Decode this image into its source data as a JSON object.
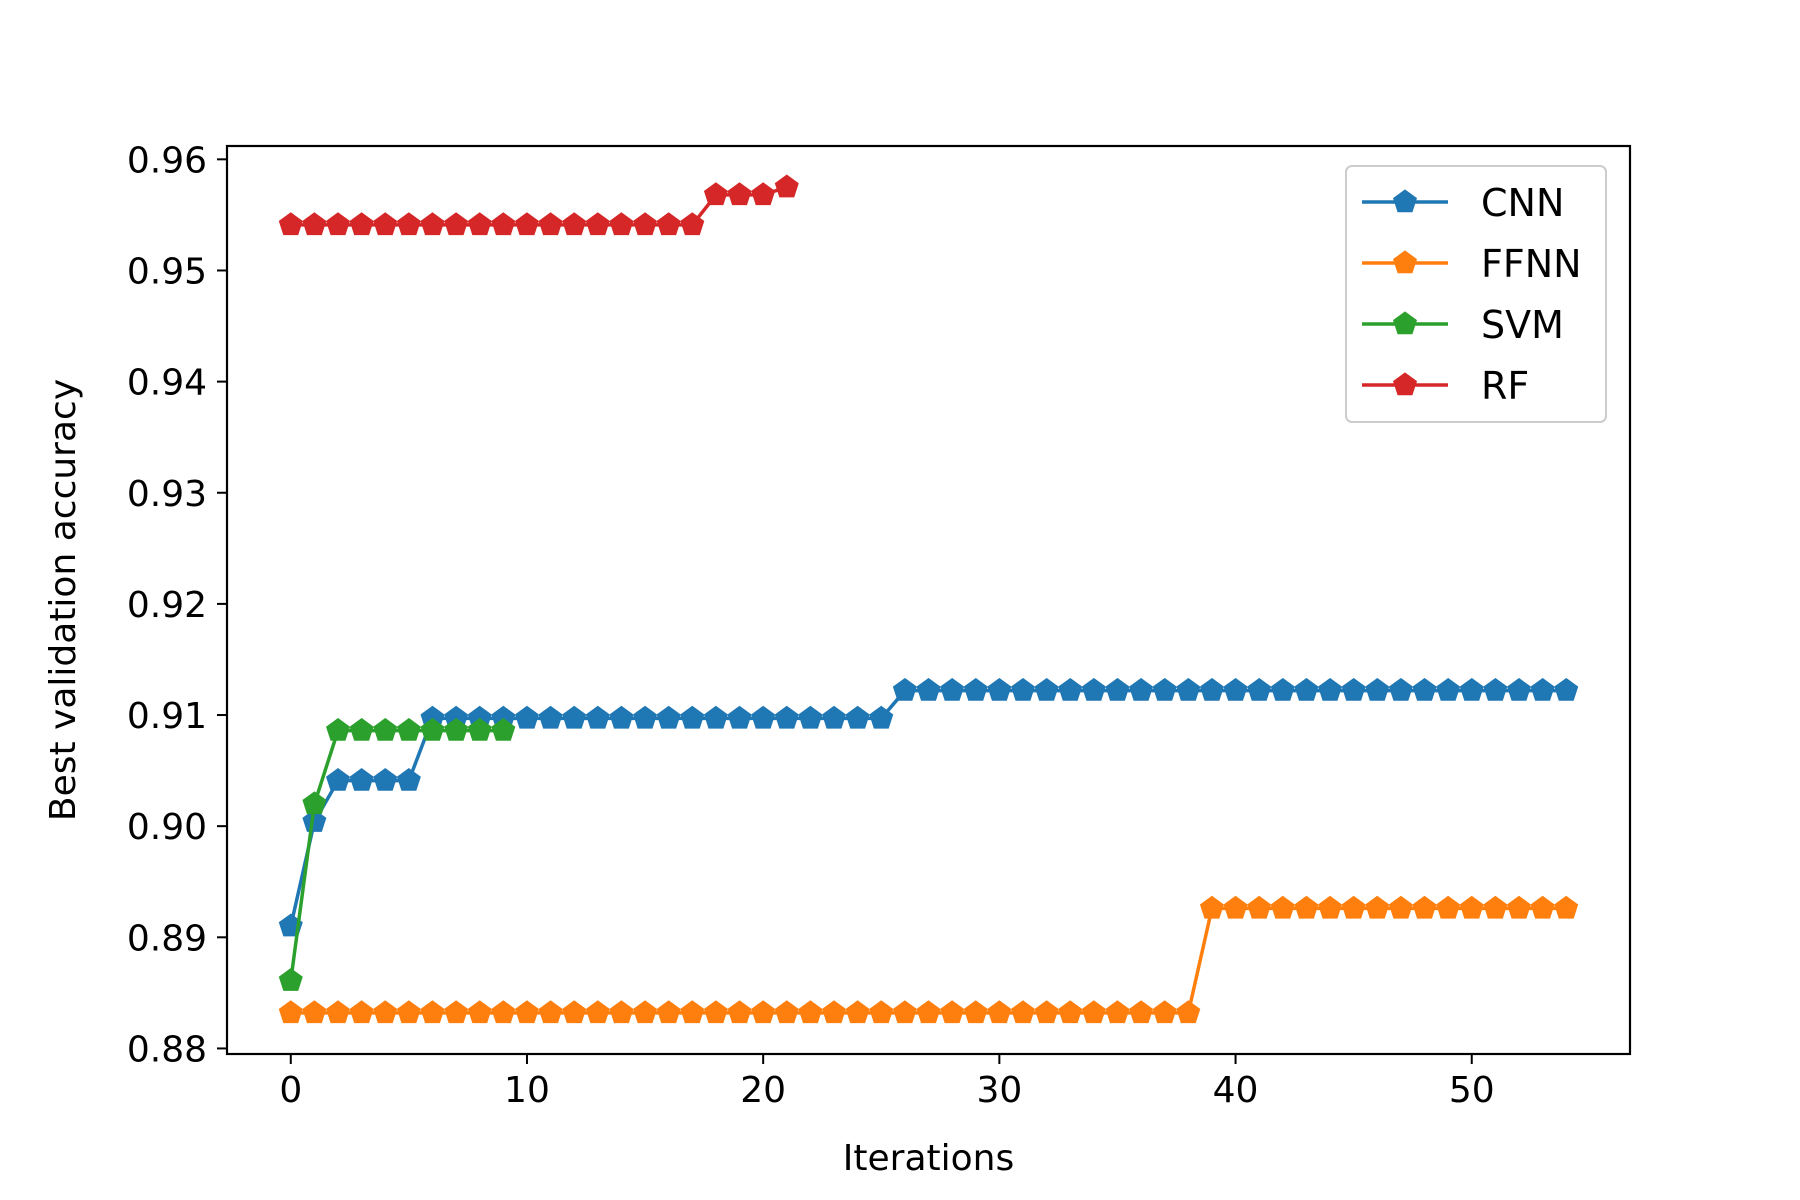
{
  "chart_data": {
    "type": "line",
    "title": "",
    "xlabel": "Iterations",
    "ylabel": "Best validation accuracy",
    "xlim": [
      -2.7,
      56.7
    ],
    "ylim": [
      0.8795,
      0.9612
    ],
    "xticks": [
      0,
      10,
      20,
      30,
      40,
      50
    ],
    "xtick_labels": [
      "0",
      "10",
      "20",
      "30",
      "40",
      "50"
    ],
    "yticks": [
      0.88,
      0.89,
      0.9,
      0.91,
      0.92,
      0.93,
      0.94,
      0.95,
      0.96
    ],
    "ytick_labels": [
      "0.88",
      "0.89",
      "0.90",
      "0.91",
      "0.92",
      "0.93",
      "0.94",
      "0.95",
      "0.96"
    ],
    "grid": false,
    "legend_position": "top-right",
    "marker": "pentagon",
    "series": [
      {
        "name": "CNN",
        "color": "#1f77b4",
        "x": [
          0,
          1,
          2,
          3,
          4,
          5,
          6,
          7,
          8,
          9,
          10,
          11,
          12,
          13,
          14,
          15,
          16,
          17,
          18,
          19,
          20,
          21,
          22,
          23,
          24,
          25,
          26,
          27,
          28,
          29,
          30,
          31,
          32,
          33,
          34,
          35,
          36,
          37,
          38,
          39,
          40,
          41,
          42,
          43,
          44,
          45,
          46,
          47,
          48,
          49,
          50,
          51,
          52,
          53,
          54
        ],
        "y": [
          0.891,
          0.9004,
          0.9041,
          0.9041,
          0.9041,
          0.9041,
          0.9097,
          0.9097,
          0.9097,
          0.9097,
          0.9097,
          0.9097,
          0.9097,
          0.9097,
          0.9097,
          0.9097,
          0.9097,
          0.9097,
          0.9097,
          0.9097,
          0.9097,
          0.9097,
          0.9097,
          0.9097,
          0.9097,
          0.9097,
          0.9122,
          0.9122,
          0.9122,
          0.9122,
          0.9122,
          0.9122,
          0.9122,
          0.9122,
          0.9122,
          0.9122,
          0.9122,
          0.9122,
          0.9122,
          0.9122,
          0.9122,
          0.9122,
          0.9122,
          0.9122,
          0.9122,
          0.9122,
          0.9122,
          0.9122,
          0.9122,
          0.9122,
          0.9122,
          0.9122,
          0.9122,
          0.9122,
          0.9122
        ]
      },
      {
        "name": "FFNN",
        "color": "#ff7f0e",
        "x": [
          0,
          1,
          2,
          3,
          4,
          5,
          6,
          7,
          8,
          9,
          10,
          11,
          12,
          13,
          14,
          15,
          16,
          17,
          18,
          19,
          20,
          21,
          22,
          23,
          24,
          25,
          26,
          27,
          28,
          29,
          30,
          31,
          32,
          33,
          34,
          35,
          36,
          37,
          38,
          39,
          40,
          41,
          42,
          43,
          44,
          45,
          46,
          47,
          48,
          49,
          50,
          51,
          52,
          53,
          54
        ],
        "y": [
          0.8832,
          0.8832,
          0.8832,
          0.8832,
          0.8832,
          0.8832,
          0.8832,
          0.8832,
          0.8832,
          0.8832,
          0.8832,
          0.8832,
          0.8832,
          0.8832,
          0.8832,
          0.8832,
          0.8832,
          0.8832,
          0.8832,
          0.8832,
          0.8832,
          0.8832,
          0.8832,
          0.8832,
          0.8832,
          0.8832,
          0.8832,
          0.8832,
          0.8832,
          0.8832,
          0.8832,
          0.8832,
          0.8832,
          0.8832,
          0.8832,
          0.8832,
          0.8832,
          0.8832,
          0.8832,
          0.8926,
          0.8926,
          0.8926,
          0.8926,
          0.8926,
          0.8926,
          0.8926,
          0.8926,
          0.8926,
          0.8926,
          0.8926,
          0.8926,
          0.8926,
          0.8926,
          0.8926,
          0.8926
        ]
      },
      {
        "name": "SVM",
        "color": "#2ca02c",
        "x": [
          0,
          1,
          2,
          3,
          4,
          5,
          6,
          7,
          8,
          9
        ],
        "y": [
          0.8861,
          0.902,
          0.9086,
          0.9086,
          0.9086,
          0.9086,
          0.9086,
          0.9086,
          0.9086,
          0.9086
        ]
      },
      {
        "name": "RF",
        "color": "#d62728",
        "x": [
          0,
          1,
          2,
          3,
          4,
          5,
          6,
          7,
          8,
          9,
          10,
          11,
          12,
          13,
          14,
          15,
          16,
          17,
          18,
          19,
          20,
          21
        ],
        "y": [
          0.9541,
          0.9541,
          0.9541,
          0.9541,
          0.9541,
          0.9541,
          0.9541,
          0.9541,
          0.9541,
          0.9541,
          0.9541,
          0.9541,
          0.9541,
          0.9541,
          0.9541,
          0.9541,
          0.9541,
          0.9541,
          0.9568,
          0.9568,
          0.9568,
          0.9575
        ]
      }
    ]
  }
}
